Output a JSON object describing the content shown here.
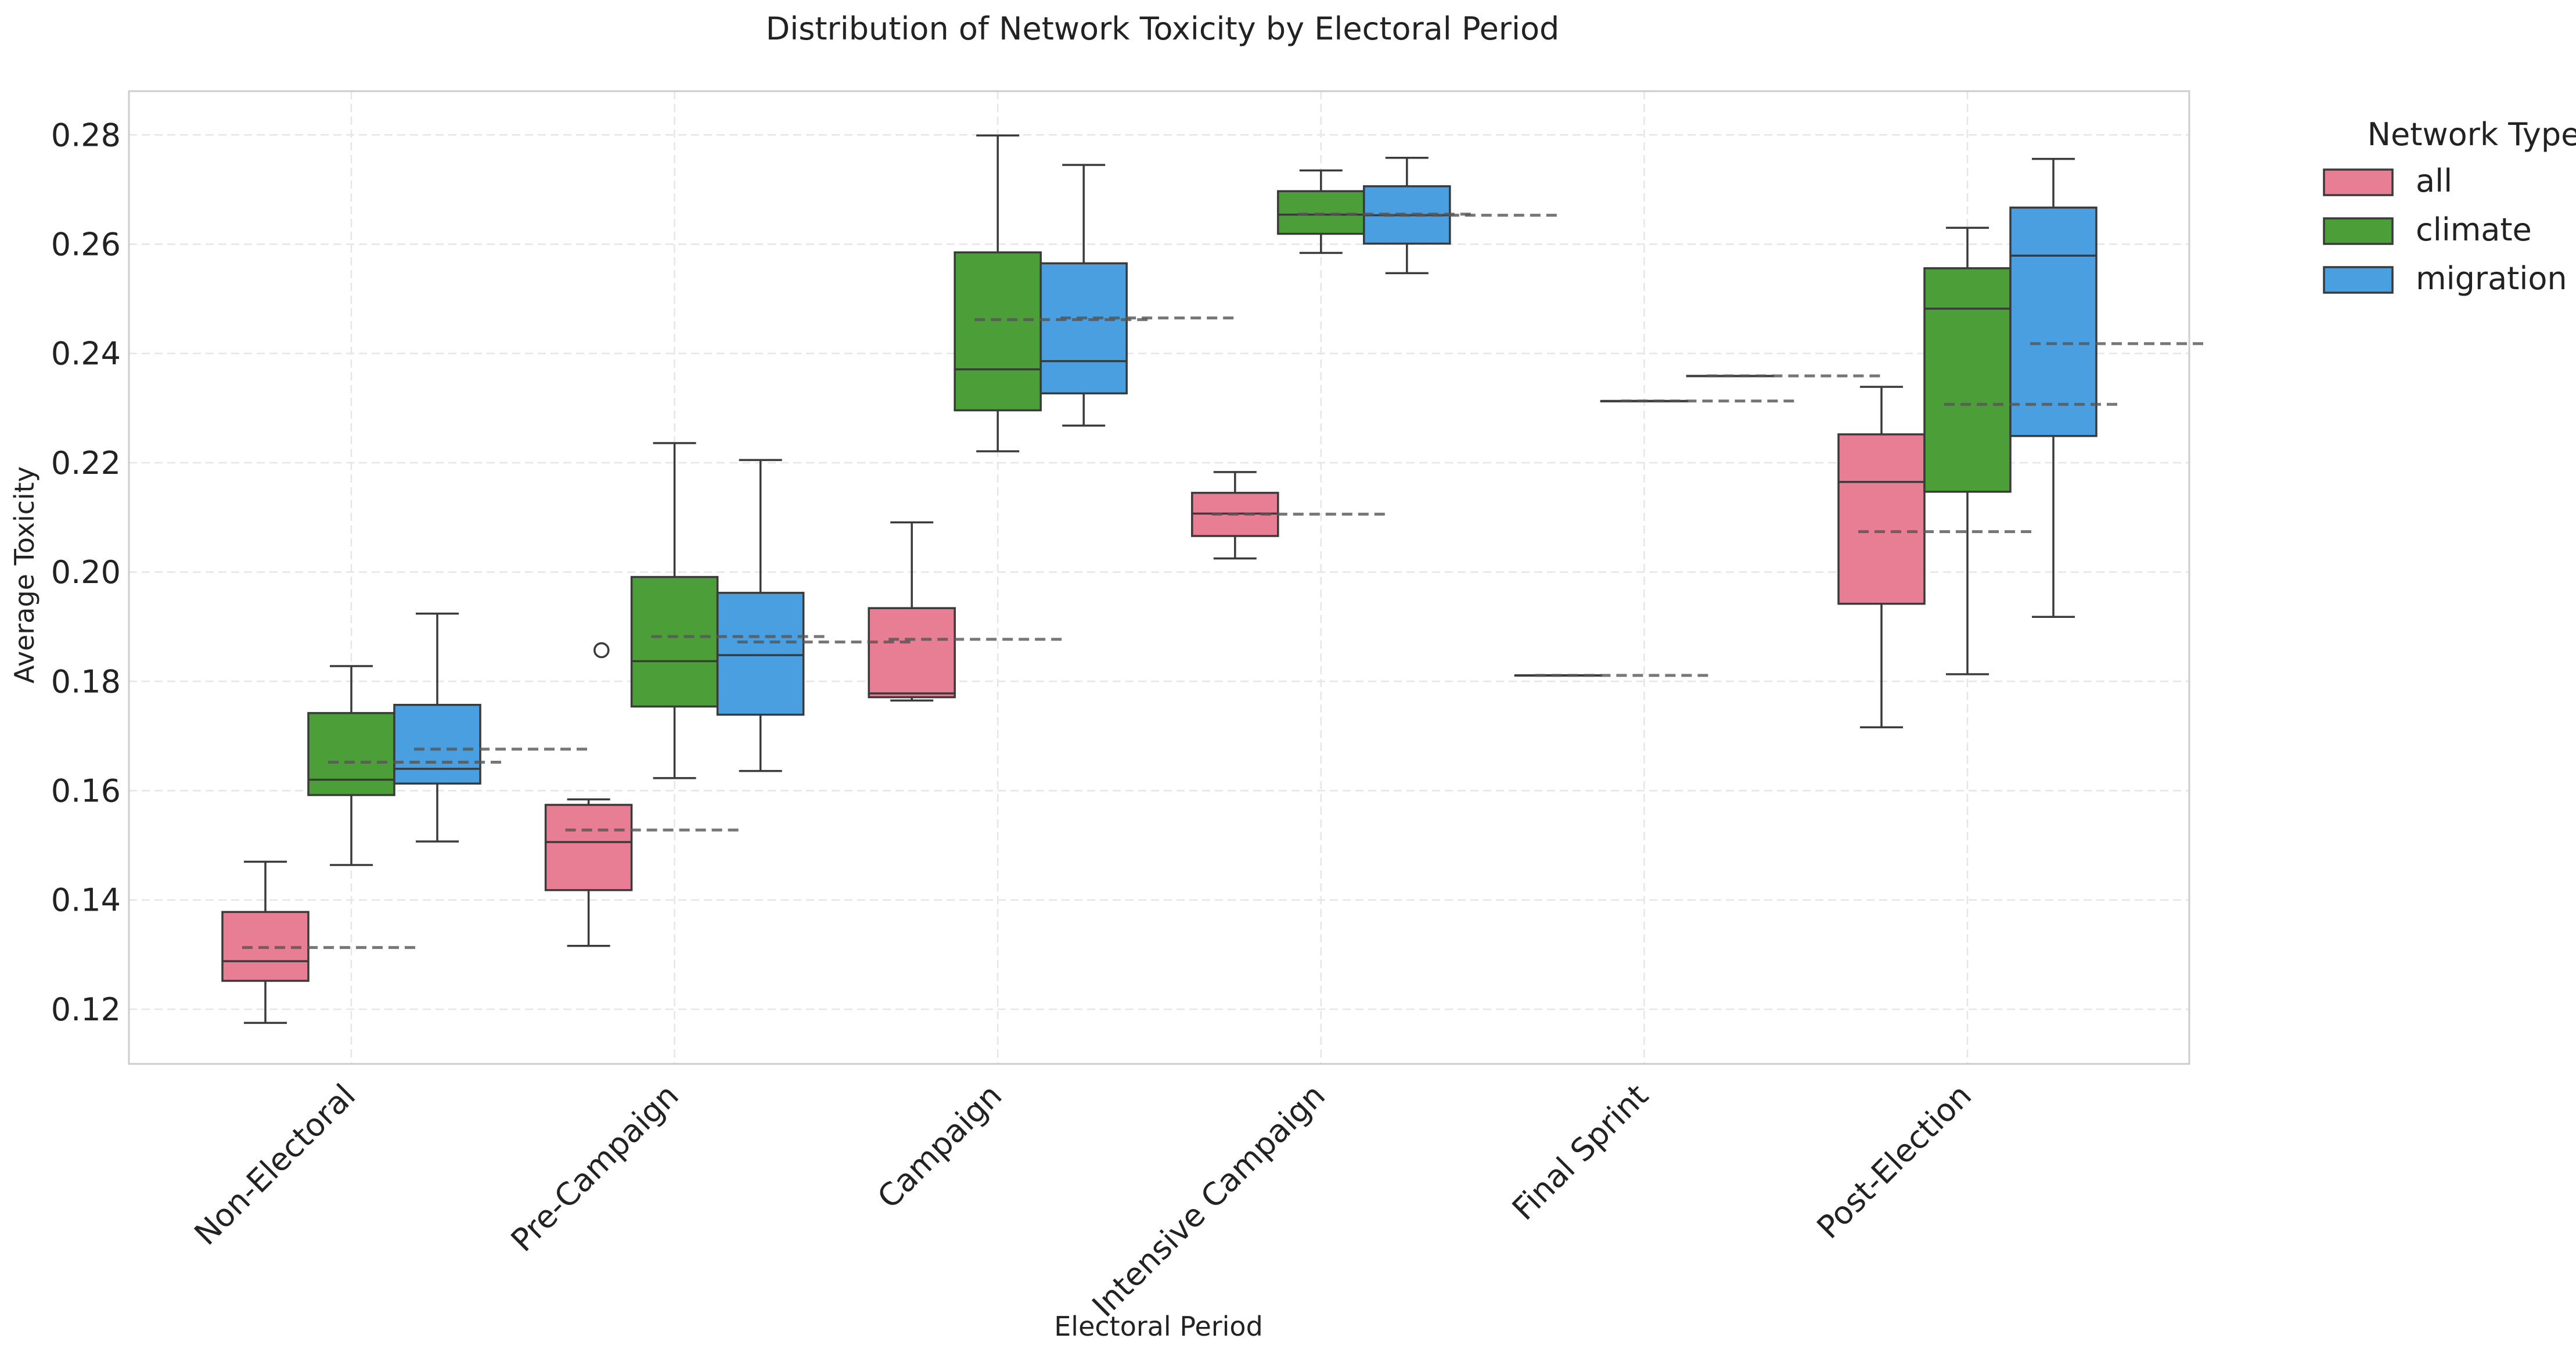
{
  "chart_data": {
    "type": "box",
    "title": "Distribution of Network Toxicity by Electoral Period",
    "xlabel": "Electoral Period",
    "ylabel": "Average Toxicity",
    "ylim": [
      0.11,
      0.288
    ],
    "yticks": [
      0.12,
      0.14,
      0.16,
      0.18,
      0.2,
      0.22,
      0.24,
      0.26,
      0.28
    ],
    "ytick_labels": [
      "0.12",
      "0.14",
      "0.16",
      "0.18",
      "0.20",
      "0.22",
      "0.24",
      "0.26",
      "0.28"
    ],
    "categories": [
      "Non-Electoral",
      "Pre-Campaign",
      "Campaign",
      "Intensive Campaign",
      "Final Sprint",
      "Post-Election"
    ],
    "grid": true,
    "legend": {
      "title": "Network Type",
      "placement": "outside-right-top"
    },
    "series": [
      {
        "name": "all",
        "color": "#e87e93",
        "boxes": [
          {
            "whislo": 0.1175,
            "q1": 0.1252,
            "med": 0.1288,
            "q3": 0.1378,
            "whishi": 0.147,
            "mean": 0.1313,
            "fliers": []
          },
          {
            "whislo": 0.1316,
            "q1": 0.1418,
            "med": 0.1506,
            "q3": 0.1574,
            "whishi": 0.1584,
            "mean": 0.1528,
            "fliers": []
          },
          {
            "whislo": 0.1765,
            "q1": 0.1771,
            "med": 0.1778,
            "q3": 0.1934,
            "whishi": 0.2091,
            "mean": 0.1877,
            "fliers": []
          },
          {
            "whislo": 0.2025,
            "q1": 0.2066,
            "med": 0.2107,
            "q3": 0.2145,
            "whishi": 0.2183,
            "mean": 0.2106,
            "fliers": []
          },
          {
            "whislo": 0.1811,
            "q1": 0.1811,
            "med": 0.1811,
            "q3": 0.1811,
            "whishi": 0.1811,
            "mean": 0.1811,
            "fliers": []
          },
          {
            "whislo": 0.1716,
            "q1": 0.1942,
            "med": 0.2165,
            "q3": 0.2252,
            "whishi": 0.2339,
            "mean": 0.2074,
            "fliers": []
          }
        ]
      },
      {
        "name": "climate",
        "color": "#4c9f38",
        "boxes": [
          {
            "whislo": 0.1464,
            "q1": 0.1592,
            "med": 0.162,
            "q3": 0.1742,
            "whishi": 0.1828,
            "mean": 0.1652,
            "fliers": []
          },
          {
            "whislo": 0.1623,
            "q1": 0.1754,
            "med": 0.1837,
            "q3": 0.1991,
            "whishi": 0.2236,
            "mean": 0.1882,
            "fliers": [
              0.1857
            ]
          },
          {
            "whislo": 0.2221,
            "q1": 0.2296,
            "med": 0.2371,
            "q3": 0.2585,
            "whishi": 0.2799,
            "mean": 0.2462,
            "fliers": []
          },
          {
            "whislo": 0.2584,
            "q1": 0.2619,
            "med": 0.2654,
            "q3": 0.2697,
            "whishi": 0.2735,
            "mean": 0.2655,
            "fliers": []
          },
          {
            "whislo": 0.2313,
            "q1": 0.2313,
            "med": 0.2313,
            "q3": 0.2313,
            "whishi": 0.2313,
            "mean": 0.2313,
            "fliers": []
          },
          {
            "whislo": 0.1813,
            "q1": 0.2147,
            "med": 0.2482,
            "q3": 0.2556,
            "whishi": 0.263,
            "mean": 0.2307,
            "fliers": []
          }
        ]
      },
      {
        "name": "migration",
        "color": "#4a9fe0",
        "boxes": [
          {
            "whislo": 0.1507,
            "q1": 0.1613,
            "med": 0.164,
            "q3": 0.1757,
            "whishi": 0.1924,
            "mean": 0.1676,
            "fliers": []
          },
          {
            "whislo": 0.1636,
            "q1": 0.1739,
            "med": 0.1848,
            "q3": 0.1962,
            "whishi": 0.2205,
            "mean": 0.1872,
            "fliers": []
          },
          {
            "whislo": 0.2268,
            "q1": 0.2327,
            "med": 0.2386,
            "q3": 0.2565,
            "whishi": 0.2745,
            "mean": 0.2465,
            "fliers": []
          },
          {
            "whislo": 0.2547,
            "q1": 0.2601,
            "med": 0.2653,
            "q3": 0.2706,
            "whishi": 0.2758,
            "mean": 0.2653,
            "fliers": []
          },
          {
            "whislo": 0.2359,
            "q1": 0.2359,
            "med": 0.2359,
            "q3": 0.2359,
            "whishi": 0.2359,
            "mean": 0.2359,
            "fliers": []
          },
          {
            "whislo": 0.1918,
            "q1": 0.2249,
            "med": 0.2579,
            "q3": 0.2667,
            "whishi": 0.2756,
            "mean": 0.2418,
            "fliers": []
          }
        ]
      }
    ]
  }
}
